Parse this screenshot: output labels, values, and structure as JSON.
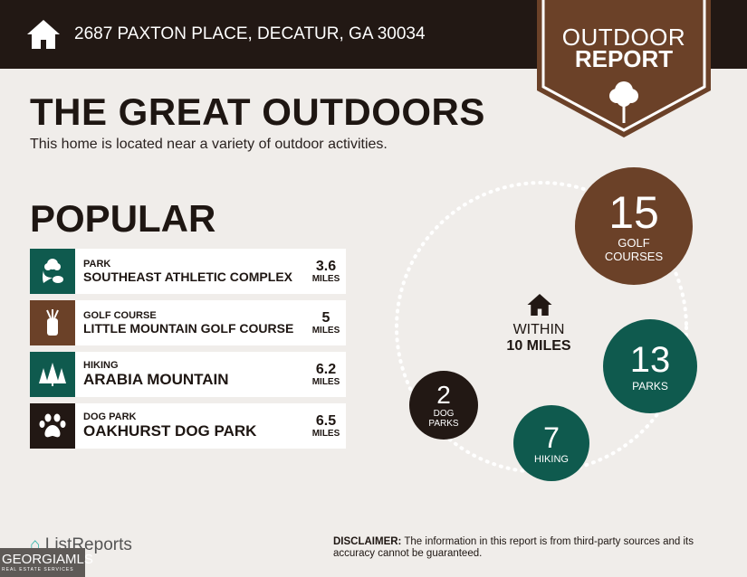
{
  "header": {
    "address": "2687 PAXTON PLACE, DECATUR, GA 30034",
    "icon": "home-icon"
  },
  "badge": {
    "line1": "OUTDOOR",
    "line2": "REPORT",
    "icon": "tree-icon"
  },
  "title": "THE GREAT OUTDOORS",
  "subtitle": "This home is located near a variety of outdoor activities.",
  "popular": {
    "heading": "POPULAR",
    "items": [
      {
        "category": "PARK",
        "name": "SOUTHEAST ATHLETIC COMPLEX",
        "distance": "3.6",
        "unit": "MILES",
        "icon": "park-icon",
        "color": "#0f5a4e"
      },
      {
        "category": "GOLF COURSE",
        "name": "LITTLE MOUNTAIN GOLF COURSE",
        "distance": "5",
        "unit": "MILES",
        "icon": "golf-bag-icon",
        "color": "#6b4128"
      },
      {
        "category": "HIKING",
        "name": "ARABIA MOUNTAIN",
        "distance": "6.2",
        "unit": "MILES",
        "icon": "trees-icon",
        "color": "#0f5a4e"
      },
      {
        "category": "DOG PARK",
        "name": "OAKHURST DOG PARK",
        "distance": "6.5",
        "unit": "MILES",
        "icon": "paw-icon",
        "color": "#221814"
      }
    ]
  },
  "within": {
    "line1": "WITHIN",
    "line2": "10 MILES"
  },
  "counts": [
    {
      "value": "15",
      "label1": "GOLF",
      "label2": "COURSES",
      "color": "#6b4128"
    },
    {
      "value": "13",
      "label1": "PARKS",
      "label2": "",
      "color": "#0f5a4e"
    },
    {
      "value": "7",
      "label1": "HIKING",
      "label2": "",
      "color": "#0f5a4e"
    },
    {
      "value": "2",
      "label1": "DOG",
      "label2": "PARKS",
      "color": "#221814"
    }
  ],
  "footer": {
    "logo": "ListReports",
    "mls": "GEORGIAMLS",
    "mls_sub": "REAL ESTATE SERVICES",
    "disclaimer_label": "DISCLAIMER:",
    "disclaimer": " The information in this report is from third-party sources and its accuracy cannot be guaranteed."
  }
}
